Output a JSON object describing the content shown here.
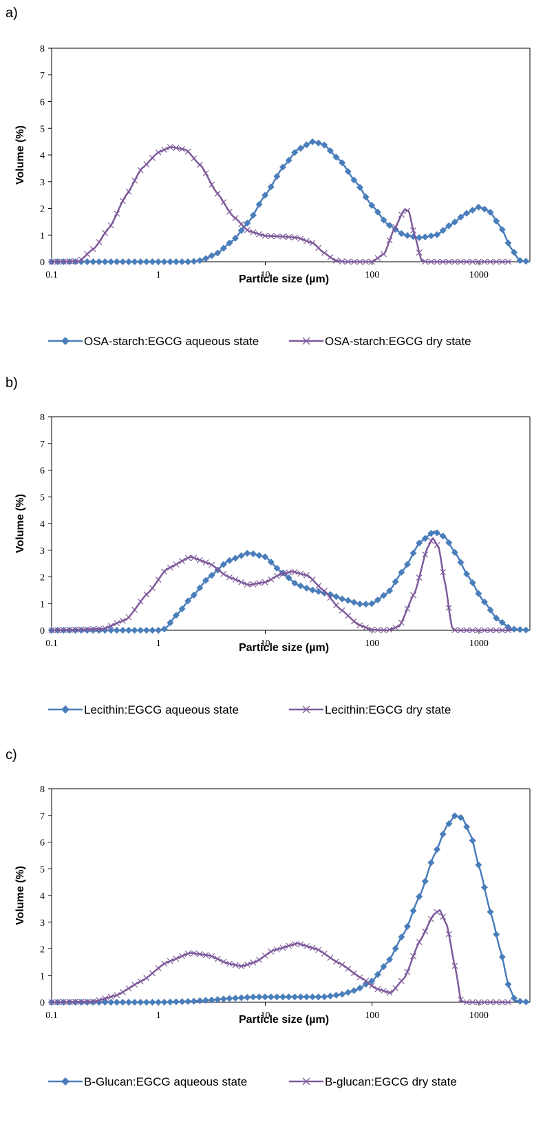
{
  "chart_data": [
    {
      "panel_label": "a)",
      "type": "line",
      "xscale": "log",
      "xlim": [
        0.1,
        3000
      ],
      "ylim": [
        0,
        8
      ],
      "xticks": [
        "0.1",
        "1",
        "10",
        "100",
        "1000"
      ],
      "yticks": [
        "0",
        "1",
        "2",
        "3",
        "4",
        "5",
        "6",
        "7",
        "8"
      ],
      "xlabel": "Particle size (µm)",
      "ylabel": "Volume (%)",
      "legend_position": "bottom",
      "series": [
        {
          "name": "OSA-starch:EGCG aqueous state",
          "color": "#4a7ebb",
          "marker": "diamond",
          "points": [
            [
              0.1,
              0
            ],
            [
              1,
              0
            ],
            [
              2,
              0
            ],
            [
              2.5,
              0.05
            ],
            [
              3.5,
              0.3
            ],
            [
              5,
              0.8
            ],
            [
              7,
              1.5
            ],
            [
              10,
              2.5
            ],
            [
              15,
              3.6
            ],
            [
              20,
              4.2
            ],
            [
              28,
              4.5
            ],
            [
              35,
              4.4
            ],
            [
              50,
              3.8
            ],
            [
              70,
              3.0
            ],
            [
              100,
              2.1
            ],
            [
              140,
              1.4
            ],
            [
              200,
              1.0
            ],
            [
              280,
              0.9
            ],
            [
              400,
              1.0
            ],
            [
              550,
              1.4
            ],
            [
              750,
              1.8
            ],
            [
              1000,
              2.05
            ],
            [
              1250,
              1.9
            ],
            [
              1600,
              1.3
            ],
            [
              2000,
              0.5
            ],
            [
              2400,
              0.05
            ],
            [
              3000,
              0
            ]
          ]
        },
        {
          "name": "OSA-starch:EGCG dry state",
          "color": "#7e5a9b",
          "marker": "x",
          "points": [
            [
              0.1,
              0
            ],
            [
              0.18,
              0.02
            ],
            [
              0.25,
              0.5
            ],
            [
              0.35,
              1.3
            ],
            [
              0.5,
              2.5
            ],
            [
              0.7,
              3.5
            ],
            [
              1,
              4.1
            ],
            [
              1.3,
              4.3
            ],
            [
              1.8,
              4.2
            ],
            [
              2.5,
              3.6
            ],
            [
              3.5,
              2.6
            ],
            [
              5,
              1.7
            ],
            [
              7,
              1.15
            ],
            [
              10,
              0.97
            ],
            [
              14,
              0.95
            ],
            [
              20,
              0.9
            ],
            [
              28,
              0.7
            ],
            [
              35,
              0.35
            ],
            [
              45,
              0.05
            ],
            [
              55,
              0
            ],
            [
              100,
              0
            ],
            [
              130,
              0.3
            ],
            [
              160,
              1.2
            ],
            [
              200,
              1.95
            ],
            [
              220,
              1.9
            ],
            [
              250,
              1.0
            ],
            [
              290,
              0.05
            ],
            [
              320,
              0
            ],
            [
              2000,
              0
            ]
          ]
        }
      ]
    },
    {
      "panel_label": "b)",
      "type": "line",
      "xscale": "log",
      "xlim": [
        0.1,
        3000
      ],
      "ylim": [
        0,
        8
      ],
      "xticks": [
        "0.1",
        "1",
        "10",
        "100",
        "1000"
      ],
      "yticks": [
        "0",
        "1",
        "2",
        "3",
        "4",
        "5",
        "6",
        "7",
        "8"
      ],
      "xlabel": "Particle size (µm)",
      "ylabel": "Volume (%)",
      "legend_position": "bottom",
      "series": [
        {
          "name": "Lecithin:EGCG aqueous state",
          "color": "#4a7ebb",
          "marker": "diamond",
          "points": [
            [
              0.1,
              0
            ],
            [
              1,
              0
            ],
            [
              1.15,
              0.05
            ],
            [
              1.5,
              0.6
            ],
            [
              2,
              1.2
            ],
            [
              3,
              2.0
            ],
            [
              4.5,
              2.6
            ],
            [
              7,
              2.9
            ],
            [
              10,
              2.75
            ],
            [
              14,
              2.2
            ],
            [
              20,
              1.7
            ],
            [
              28,
              1.5
            ],
            [
              40,
              1.35
            ],
            [
              55,
              1.15
            ],
            [
              80,
              0.97
            ],
            [
              100,
              1.0
            ],
            [
              140,
              1.4
            ],
            [
              200,
              2.3
            ],
            [
              280,
              3.3
            ],
            [
              380,
              3.7
            ],
            [
              480,
              3.5
            ],
            [
              600,
              2.9
            ],
            [
              800,
              2.0
            ],
            [
              1100,
              1.1
            ],
            [
              1500,
              0.4
            ],
            [
              2000,
              0.05
            ],
            [
              3000,
              0
            ]
          ]
        },
        {
          "name": "Lecithin:EGCG dry state",
          "color": "#7e5a9b",
          "marker": "x",
          "points": [
            [
              0.1,
              0
            ],
            [
              0.3,
              0.05
            ],
            [
              0.5,
              0.4
            ],
            [
              0.8,
              1.4
            ],
            [
              1.2,
              2.3
            ],
            [
              2,
              2.75
            ],
            [
              3,
              2.5
            ],
            [
              4.5,
              2.0
            ],
            [
              7,
              1.7
            ],
            [
              10,
              1.8
            ],
            [
              14,
              2.1
            ],
            [
              18,
              2.2
            ],
            [
              25,
              2.05
            ],
            [
              35,
              1.5
            ],
            [
              50,
              0.8
            ],
            [
              75,
              0.2
            ],
            [
              100,
              0.02
            ],
            [
              140,
              0
            ],
            [
              180,
              0.15
            ],
            [
              250,
              1.4
            ],
            [
              330,
              3.1
            ],
            [
              370,
              3.45
            ],
            [
              420,
              3.1
            ],
            [
              480,
              1.8
            ],
            [
              560,
              0.1
            ],
            [
              600,
              0
            ],
            [
              2000,
              0
            ]
          ]
        }
      ]
    },
    {
      "panel_label": "c)",
      "type": "line",
      "xscale": "log",
      "xlim": [
        0.1,
        3000
      ],
      "ylim": [
        0,
        8
      ],
      "xticks": [
        "0.1",
        "1",
        "10",
        "100",
        "1000"
      ],
      "yticks": [
        "0",
        "1",
        "2",
        "3",
        "4",
        "5",
        "6",
        "7",
        "8"
      ],
      "xlabel": "Particle size (µm)",
      "ylabel": "Volume (%)",
      "legend_position": "bottom",
      "series": [
        {
          "name": "B-Glucan:EGCG aqueous state",
          "color": "#4a7ebb",
          "marker": "diamond",
          "points": [
            [
              0.1,
              0
            ],
            [
              1,
              0
            ],
            [
              2,
              0.03
            ],
            [
              3,
              0.08
            ],
            [
              5,
              0.15
            ],
            [
              8,
              0.2
            ],
            [
              12,
              0.2
            ],
            [
              20,
              0.2
            ],
            [
              35,
              0.2
            ],
            [
              50,
              0.28
            ],
            [
              70,
              0.45
            ],
            [
              100,
              0.8
            ],
            [
              140,
              1.5
            ],
            [
              200,
              2.6
            ],
            [
              280,
              4.0
            ],
            [
              380,
              5.5
            ],
            [
              500,
              6.6
            ],
            [
              600,
              7.0
            ],
            [
              700,
              6.9
            ],
            [
              850,
              6.2
            ],
            [
              1000,
              5.1
            ],
            [
              1300,
              3.3
            ],
            [
              1600,
              1.9
            ],
            [
              1900,
              0.6
            ],
            [
              2200,
              0.05
            ],
            [
              3000,
              0
            ]
          ]
        },
        {
          "name": "B-glucan:EGCG dry state",
          "color": "#7e5a9b",
          "marker": "x",
          "points": [
            [
              0.1,
              0
            ],
            [
              0.25,
              0.03
            ],
            [
              0.4,
              0.25
            ],
            [
              0.7,
              0.8
            ],
            [
              1.2,
              1.5
            ],
            [
              2,
              1.85
            ],
            [
              3,
              1.75
            ],
            [
              4.5,
              1.45
            ],
            [
              6,
              1.35
            ],
            [
              8,
              1.5
            ],
            [
              12,
              1.95
            ],
            [
              20,
              2.2
            ],
            [
              30,
              2.0
            ],
            [
              50,
              1.45
            ],
            [
              80,
              0.9
            ],
            [
              110,
              0.5
            ],
            [
              150,
              0.35
            ],
            [
              200,
              0.9
            ],
            [
              280,
              2.3
            ],
            [
              380,
              3.3
            ],
            [
              430,
              3.45
            ],
            [
              500,
              2.9
            ],
            [
              600,
              1.3
            ],
            [
              680,
              0.05
            ],
            [
              750,
              0
            ],
            [
              2000,
              0
            ]
          ]
        }
      ]
    }
  ]
}
